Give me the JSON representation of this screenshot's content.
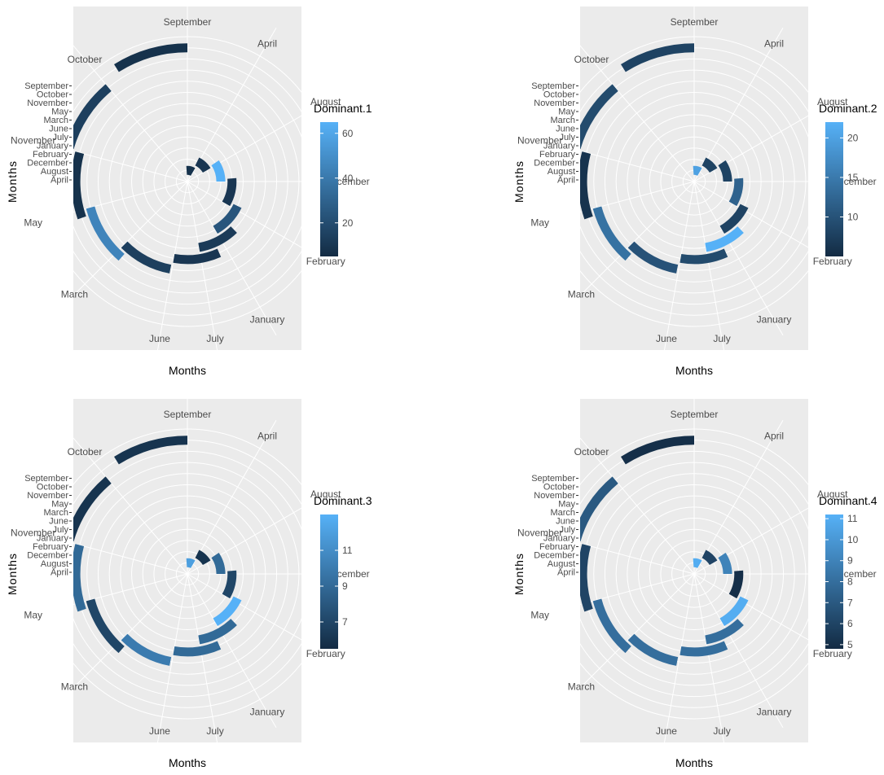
{
  "chart_data": [
    {
      "type": "polar-bar",
      "xlabel": "Months",
      "ylabel": "Months",
      "radial_tick_labels": [
        "April",
        "August",
        "December",
        "February",
        "January",
        "July",
        "June",
        "March",
        "May",
        "November",
        "October",
        "September"
      ],
      "angular_labels": [
        "April",
        "August",
        "December",
        "February",
        "January",
        "July",
        "June",
        "March",
        "May",
        "November",
        "October",
        "September"
      ],
      "bars": [
        {
          "category": "April",
          "value": 8
        },
        {
          "category": "August",
          "value": 10
        },
        {
          "category": "December",
          "value": 65
        },
        {
          "category": "February",
          "value": 10
        },
        {
          "category": "January",
          "value": 24
        },
        {
          "category": "July",
          "value": 12
        },
        {
          "category": "June",
          "value": 10
        },
        {
          "category": "March",
          "value": 14
        },
        {
          "category": "May",
          "value": 45
        },
        {
          "category": "November",
          "value": 8
        },
        {
          "category": "October",
          "value": 14
        },
        {
          "category": "September",
          "value": 8
        }
      ],
      "legend": {
        "title": "Dominant.1",
        "ticks": [
          20,
          40,
          60
        ],
        "min": 5,
        "max": 65,
        "position": "right"
      },
      "colors": {
        "low": "#132b43",
        "high": "#56b1f7"
      }
    },
    {
      "type": "polar-bar",
      "xlabel": "Months",
      "ylabel": "Months",
      "radial_tick_labels": [
        "April",
        "August",
        "December",
        "February",
        "January",
        "July",
        "June",
        "March",
        "May",
        "November",
        "October",
        "September"
      ],
      "angular_labels": [
        "April",
        "August",
        "December",
        "February",
        "January",
        "July",
        "June",
        "March",
        "May",
        "November",
        "October",
        "September"
      ],
      "bars": [
        {
          "category": "April",
          "value": 20
        },
        {
          "category": "August",
          "value": 8
        },
        {
          "category": "December",
          "value": 8
        },
        {
          "category": "February",
          "value": 12
        },
        {
          "category": "January",
          "value": 8
        },
        {
          "category": "July",
          "value": 22
        },
        {
          "category": "June",
          "value": 9
        },
        {
          "category": "March",
          "value": 10
        },
        {
          "category": "May",
          "value": 14
        },
        {
          "category": "November",
          "value": 6
        },
        {
          "category": "October",
          "value": 9
        },
        {
          "category": "September",
          "value": 8
        }
      ],
      "legend": {
        "title": "Dominant.2",
        "ticks": [
          10,
          15,
          20
        ],
        "min": 5,
        "max": 22,
        "position": "right"
      },
      "colors": {
        "low": "#132b43",
        "high": "#56b1f7"
      }
    },
    {
      "type": "polar-bar",
      "xlabel": "Months",
      "ylabel": "Months",
      "radial_tick_labels": [
        "April",
        "August",
        "December",
        "February",
        "January",
        "July",
        "June",
        "March",
        "May",
        "November",
        "October",
        "September"
      ],
      "angular_labels": [
        "April",
        "August",
        "December",
        "February",
        "January",
        "July",
        "June",
        "March",
        "May",
        "November",
        "October",
        "September"
      ],
      "bars": [
        {
          "category": "April",
          "value": 12
        },
        {
          "category": "August",
          "value": 6
        },
        {
          "category": "December",
          "value": 9
        },
        {
          "category": "February",
          "value": 7
        },
        {
          "category": "January",
          "value": 13
        },
        {
          "category": "July",
          "value": 9
        },
        {
          "category": "June",
          "value": 9
        },
        {
          "category": "March",
          "value": 10
        },
        {
          "category": "May",
          "value": 7
        },
        {
          "category": "November",
          "value": 9
        },
        {
          "category": "October",
          "value": 6
        },
        {
          "category": "September",
          "value": 6
        }
      ],
      "legend": {
        "title": "Dominant.3",
        "ticks": [
          7,
          9,
          11
        ],
        "min": 5.5,
        "max": 13,
        "position": "right"
      },
      "colors": {
        "low": "#132b43",
        "high": "#56b1f7"
      }
    },
    {
      "type": "polar-bar",
      "xlabel": "Months",
      "ylabel": "Months",
      "radial_tick_labels": [
        "April",
        "August",
        "December",
        "February",
        "January",
        "July",
        "June",
        "March",
        "May",
        "November",
        "October",
        "September"
      ],
      "angular_labels": [
        "April",
        "August",
        "December",
        "February",
        "January",
        "July",
        "June",
        "March",
        "May",
        "November",
        "October",
        "September"
      ],
      "bars": [
        {
          "category": "April",
          "value": 11
        },
        {
          "category": "August",
          "value": 6
        },
        {
          "category": "December",
          "value": 9
        },
        {
          "category": "February",
          "value": 5
        },
        {
          "category": "January",
          "value": 11
        },
        {
          "category": "July",
          "value": 8
        },
        {
          "category": "June",
          "value": 8
        },
        {
          "category": "March",
          "value": 8
        },
        {
          "category": "May",
          "value": 8
        },
        {
          "category": "November",
          "value": 6
        },
        {
          "category": "October",
          "value": 7
        },
        {
          "category": "September",
          "value": 5
        }
      ],
      "legend": {
        "title": "Dominant.4",
        "ticks": [
          5,
          6,
          7,
          8,
          9,
          10,
          11
        ],
        "min": 4.8,
        "max": 11.2,
        "position": "right"
      },
      "colors": {
        "low": "#132b43",
        "high": "#56b1f7"
      }
    }
  ]
}
